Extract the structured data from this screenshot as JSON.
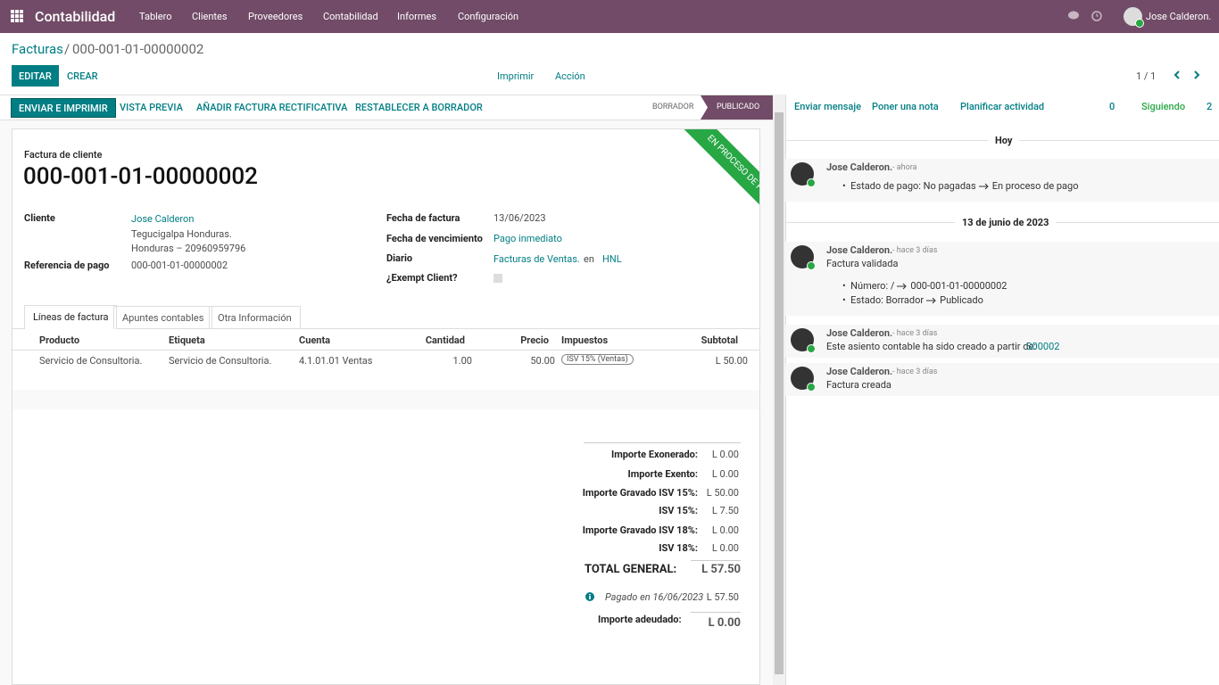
{
  "navbar": {
    "app": "Contabilidad",
    "menu": [
      "Tablero",
      "Clientes",
      "Proveedores",
      "Contabilidad",
      "Informes",
      "Configuración"
    ],
    "user": "Jose Calderon."
  },
  "breadcrumb": {
    "parent": "Facturas",
    "separator": "/",
    "current": "000-001-01-00000002"
  },
  "control": {
    "edit": "EDITAR",
    "create": "CREAR",
    "print": "Imprimir",
    "action": "Acción",
    "pager": "1 / 1"
  },
  "statusbar": {
    "buttons": [
      "ENVIAR E IMPRIMIR",
      "VISTA PREVIA",
      "AÑADIR FACTURA RECTIFICATIVA",
      "RESTABLECER A BORRADOR"
    ],
    "stages": [
      "BORRADOR",
      "PUBLICADO"
    ]
  },
  "sheet": {
    "ribbon": "EN PROCESO DE PAGO",
    "subtitle": "Factura de cliente",
    "number": "000-001-01-00000002",
    "left": {
      "client_label": "Cliente",
      "client": "Jose Calderon",
      "address": [
        "Tegucigalpa Honduras.",
        "Honduras – 20960959796"
      ],
      "ref_label": "Referencia de pago",
      "ref": "000-001-01-00000002"
    },
    "right": {
      "date_label": "Fecha de factura",
      "date": "13/06/2023",
      "due_label": "Fecha de vencimiento",
      "due": "Pago inmediato",
      "journal_label": "Diario",
      "journal": "Facturas de Ventas.",
      "in": "en",
      "currency": "HNL",
      "exempt_label": "¿Exempt Client?"
    },
    "tabs": [
      "Líneas de factura",
      "Apuntes contables",
      "Otra Información"
    ],
    "table": {
      "headers": [
        "Producto",
        "Etiqueta",
        "Cuenta",
        "Cantidad",
        "Precio",
        "Impuestos",
        "Subtotal"
      ],
      "rows": [
        [
          "Servicio de Consultoria.",
          "Servicio de Consultoria.",
          "4.1.01.01 Ventas",
          "1.00",
          "50.00",
          "ISV 15% (Ventas)",
          "L 50.00"
        ]
      ]
    },
    "totals": [
      [
        "Importe Exonerado:",
        "L 0.00"
      ],
      [
        "Importe Exento:",
        "L 0.00"
      ],
      [
        "Importe Gravado ISV 15%:",
        "L 50.00"
      ],
      [
        "ISV 15%:",
        "L 7.50"
      ],
      [
        "Importe Gravado ISV 18%:",
        "L 0.00"
      ],
      [
        "ISV 18%:",
        "L 0.00"
      ]
    ],
    "total": [
      "TOTAL GENERAL:",
      "L 57.50"
    ],
    "payment": [
      "Pagado en 16/06/2023",
      "L 57.50"
    ],
    "due_amount": [
      "Importe adeudado:",
      "L 0.00"
    ]
  },
  "chatter": {
    "actions": [
      "Enviar mensaje",
      "Poner una nota",
      "Planificar actividad"
    ],
    "attachments": "0",
    "following": "Siguiendo",
    "followers": "2",
    "separators": [
      "Hoy",
      "13 de junio de 2023"
    ],
    "messages": [
      {
        "author": "Jose Calderon.",
        "time": "- ahora",
        "tracking": [
          [
            "Estado de pago:",
            "No pagadas",
            "En proceso de pago"
          ]
        ]
      },
      {
        "author": "Jose Calderon.",
        "time": "- hace 3 días",
        "body": "Factura validada",
        "tracking": [
          [
            "Número:",
            "/",
            "000-001-01-00000002"
          ],
          [
            "Estado:",
            "Borrador",
            "Publicado"
          ]
        ]
      },
      {
        "author": "Jose Calderon.",
        "time": "- hace 3 días",
        "body": "Este asiento contable ha sido creado a partir de:",
        "link": "S00002"
      },
      {
        "author": "Jose Calderon.",
        "time": "- hace 3 días",
        "body": "Factura creada"
      }
    ]
  }
}
